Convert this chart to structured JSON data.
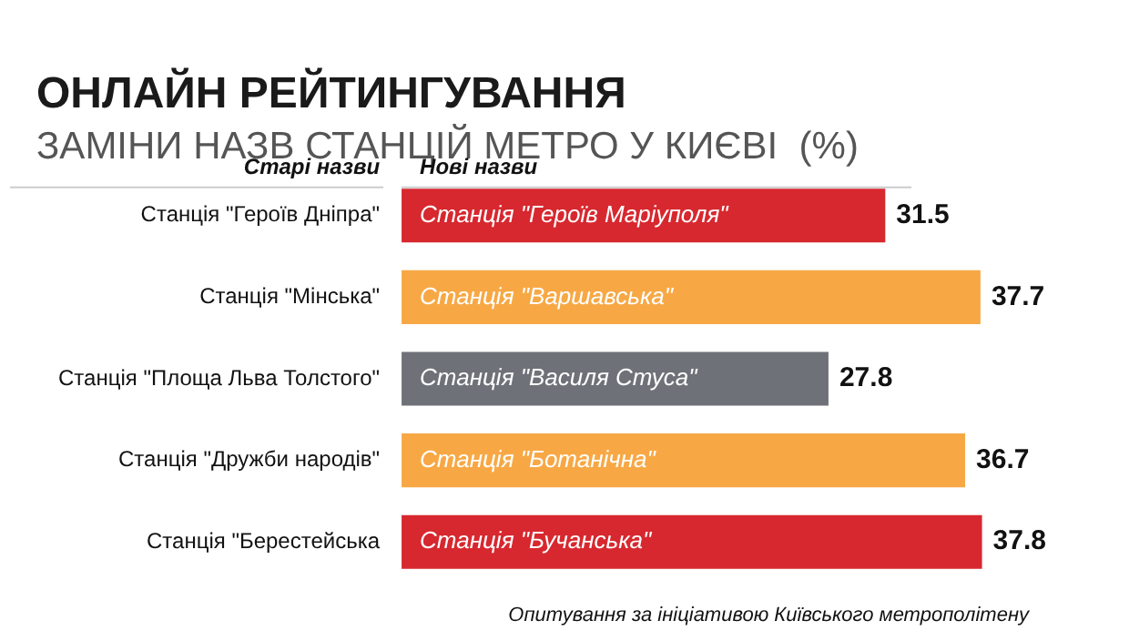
{
  "chart_data": {
    "type": "bar",
    "orientation": "horizontal",
    "title": "ОНЛАЙН РЕЙТИНГУВАННЯ",
    "subtitle": "ЗАМІНИ НАЗВ СТАНЦІЙ МЕТРО У КИЄВІ  (%)",
    "ylabel": "Старі назви",
    "categories": [
      "Станція \"Героїв Дніпра\"",
      "Станція \"Мінська\"",
      "Станція \"Площа Льва Толстого\"",
      "Станція \"Дружби народів\"",
      "Станція \"Берестейська"
    ],
    "values": [
      31.5,
      37.7,
      27.8,
      36.7,
      37.8
    ],
    "colors": [
      "#d7282f",
      "#f7a845",
      "#6e7178",
      "#f7a845",
      "#d7282f"
    ],
    "data_labels": true,
    "legend": false,
    "grid": false,
    "annotations": [
      "Нові назви",
      {
        "text": "Станція \"Героїв Маріуполя\"",
        "y": "Станція \"Героїв Дніпра\""
      },
      {
        "text": "Станція \"Варшавська\"",
        "y": "Станція \"Мінська\""
      },
      {
        "text": "Станція \"Василя Стуса\"",
        "y": "Станція \"Площа Льва Толстого\""
      },
      {
        "text": "Станція \"Ботанічна\"",
        "y": "Станція \"Дружби народів\""
      },
      {
        "text": "Станція \"Бучанська\"",
        "y": "Станція \"Берестейська"
      },
      "Опитування за ініціативою Київського метрополітену"
    ]
  }
}
